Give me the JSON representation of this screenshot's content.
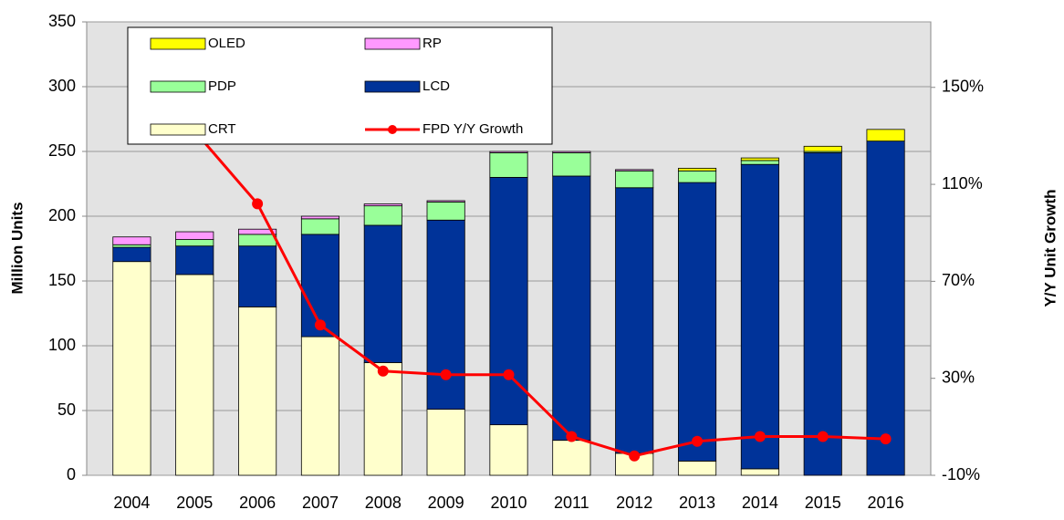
{
  "chart_data": {
    "type": "bar",
    "categories": [
      "2004",
      "2005",
      "2006",
      "2007",
      "2008",
      "2009",
      "2010",
      "2011",
      "2012",
      "2013",
      "2014",
      "2015",
      "2016"
    ],
    "series": [
      {
        "name": "CRT",
        "color": "#ffffcc",
        "values": [
          165,
          155,
          130,
          107,
          87,
          51,
          39,
          27,
          17,
          11,
          5,
          0,
          0
        ]
      },
      {
        "name": "LCD",
        "color": "#003399",
        "values": [
          11,
          22,
          47,
          79,
          106,
          146,
          191,
          204,
          205,
          215,
          235,
          249,
          258
        ]
      },
      {
        "name": "PDP",
        "color": "#99ff99",
        "values": [
          2,
          5,
          9,
          12,
          15,
          14,
          19,
          18,
          13,
          9,
          3,
          1,
          0
        ]
      },
      {
        "name": "RP",
        "color": "#ff99ff",
        "values": [
          6,
          6,
          4,
          2,
          1.5,
          1,
          1,
          1,
          1,
          0,
          0,
          0,
          0
        ]
      },
      {
        "name": "OLED",
        "color": "#ffff00",
        "values": [
          0,
          0,
          0,
          0,
          0,
          0,
          0,
          0,
          0,
          2,
          2,
          4,
          9
        ]
      },
      {
        "name": "FPD Y/Y Growth",
        "color": "#ff0000",
        "type": "line",
        "axis": "y2",
        "values": [
          null,
          132,
          102,
          52,
          33,
          31.5,
          31.5,
          6,
          -2,
          4,
          6,
          6,
          5
        ]
      }
    ],
    "ylabel": "Million Units",
    "y2label": "Y/Y Unit Growth",
    "ylim": [
      0,
      350
    ],
    "yticks": [
      0,
      50,
      100,
      150,
      200,
      250,
      300,
      350
    ],
    "y2lim": [
      -10,
      177
    ],
    "y2ticks": [
      {
        "value": -10,
        "label": "-10%"
      },
      {
        "value": 30,
        "label": "30%"
      },
      {
        "value": 70,
        "label": "70%"
      },
      {
        "value": 110,
        "label": "110%"
      },
      {
        "value": 150,
        "label": "150%"
      }
    ],
    "grid": true,
    "legend": "upper left"
  }
}
